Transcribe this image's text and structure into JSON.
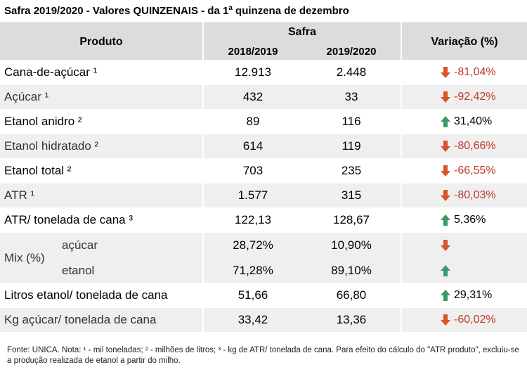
{
  "title": {
    "main": "Safra 2019/2020 - Valores QUINZENAIS - da 1",
    "sup": "a",
    "rest": " quinzena de dezembro"
  },
  "header": {
    "produto": "Produto",
    "safra": "Safra",
    "year1": "2018/2019",
    "year2": "2019/2020",
    "variacao": "Variação (%)"
  },
  "rows": [
    {
      "label": "Cana-de-açúcar ¹",
      "y1": "12.913",
      "y2": "2.448",
      "var": "-81,04%",
      "dir": "down"
    },
    {
      "label": "Açúcar ¹",
      "y1": "432",
      "y2": "33",
      "var": "-92,42%",
      "dir": "down"
    },
    {
      "label": "Etanol anidro ²",
      "y1": "89",
      "y2": "116",
      "var": "31,40%",
      "dir": "up"
    },
    {
      "label": "Etanol hidratado ²",
      "y1": "614",
      "y2": "119",
      "var": "-80,66%",
      "dir": "down"
    },
    {
      "label": "Etanol total ²",
      "y1": "703",
      "y2": "235",
      "var": "-66,55%",
      "dir": "down"
    },
    {
      "label": "ATR ¹",
      "y1": "1.577",
      "y2": "315",
      "var": "-80,03%",
      "dir": "down"
    },
    {
      "label": "ATR/ tonelada de cana ³",
      "y1": "122,13",
      "y2": "128,67",
      "var": "5,36%",
      "dir": "up"
    }
  ],
  "mix": {
    "label": "Mix (%)",
    "sub": [
      {
        "label": "açúcar",
        "y1": "28,72%",
        "y2": "10,90%",
        "dir": "down"
      },
      {
        "label": "etanol",
        "y1": "71,28%",
        "y2": "89,10%",
        "dir": "up"
      }
    ]
  },
  "rows2": [
    {
      "label": "Litros etanol/ tonelada de cana",
      "y1": "51,66",
      "y2": "66,80",
      "var": "29,31%",
      "dir": "up"
    },
    {
      "label": "Kg açúcar/ tonelada de cana",
      "y1": "33,42",
      "y2": "13,36",
      "var": "-60,02%",
      "dir": "down"
    }
  ],
  "footnote": "Fonte: UNICA. Nota: ¹ - mil toneladas; ² - milhões de litros; ³ - kg de ATR/ tonelada de cana. Para efeito do cálculo do \"ATR produto\", excluiu-se a produção realizada de etanol a partir do milho.",
  "colors": {
    "up": "#3a9a6a",
    "down": "#d9532c",
    "neg_text": "#c0392b",
    "header_bg": "#dcdcdc",
    "alt_bg": "#efefef"
  },
  "icons": {
    "up": "arrow-up-icon",
    "down": "arrow-down-icon"
  }
}
